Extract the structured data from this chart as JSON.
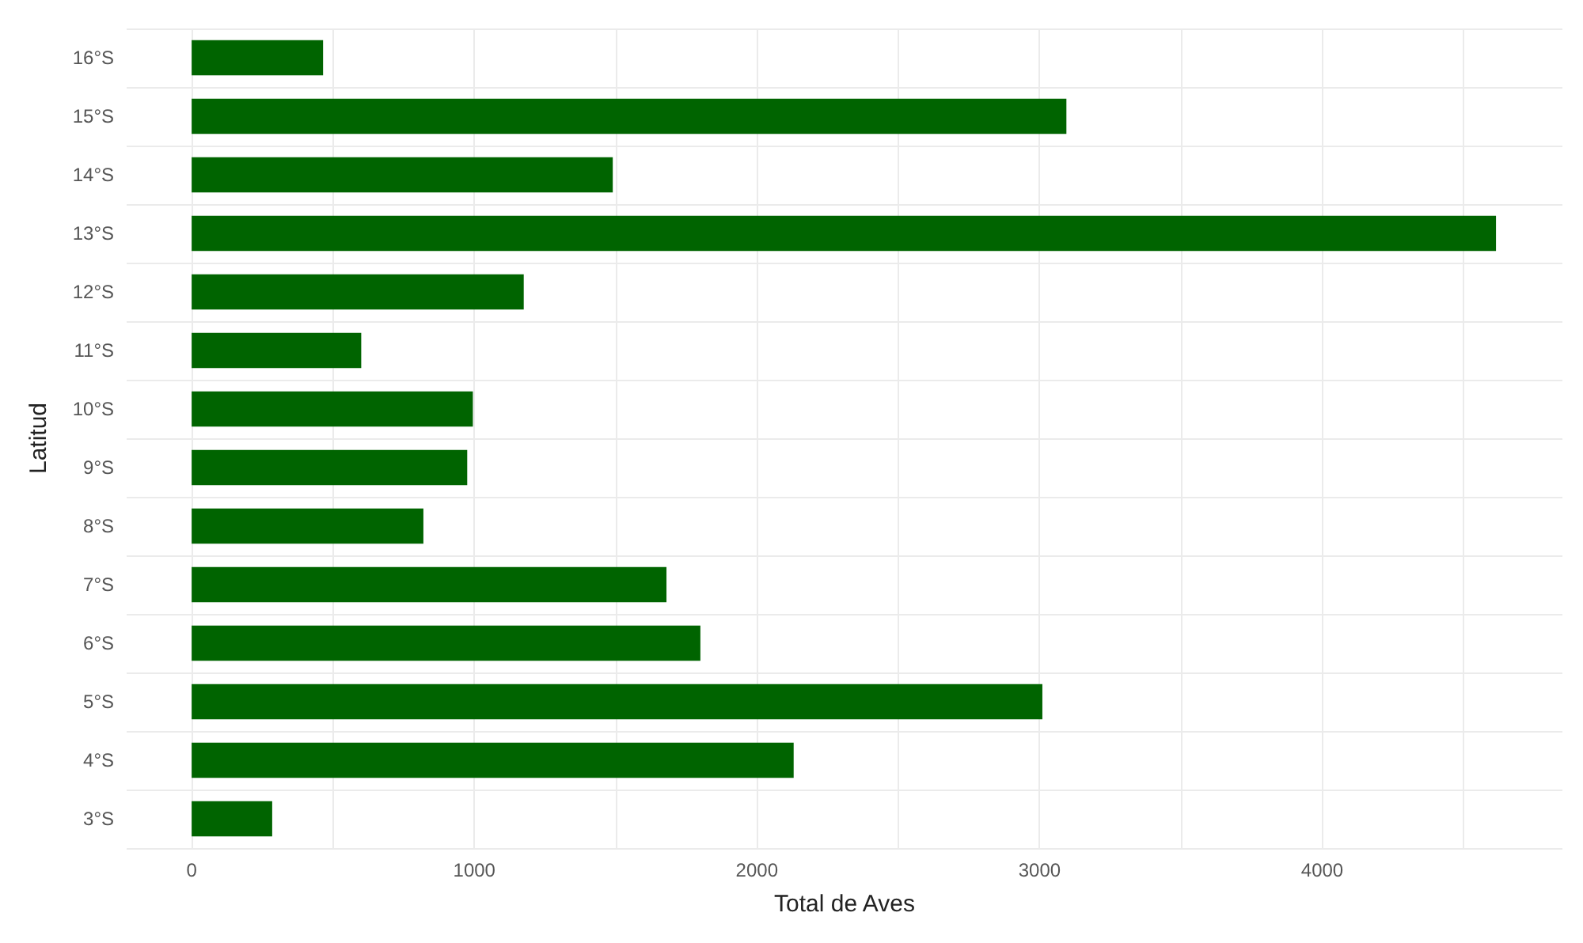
{
  "chart_data": {
    "type": "bar",
    "orientation": "horizontal",
    "xlabel": "Total de Aves",
    "ylabel": "Latitud",
    "categories": [
      "16°S",
      "15°S",
      "14°S",
      "13°S",
      "12°S",
      "11°S",
      "10°S",
      "9°S",
      "8°S",
      "7°S",
      "6°S",
      "5°S",
      "4°S",
      "3°S"
    ],
    "values": [
      465,
      3095,
      1490,
      4615,
      1175,
      600,
      995,
      975,
      820,
      1680,
      1800,
      3010,
      2130,
      285
    ],
    "color": "#006400",
    "xlim": [
      -230,
      4850
    ],
    "xticks": [
      0,
      {
        "value": 500,
        "label": null
      },
      1000,
      {
        "value": 1500,
        "label": null
      },
      2000,
      {
        "value": 2500,
        "label": null
      },
      3000,
      {
        "value": 3500,
        "label": null
      },
      4000,
      {
        "value": 4500,
        "label": null
      }
    ],
    "grid": true
  }
}
